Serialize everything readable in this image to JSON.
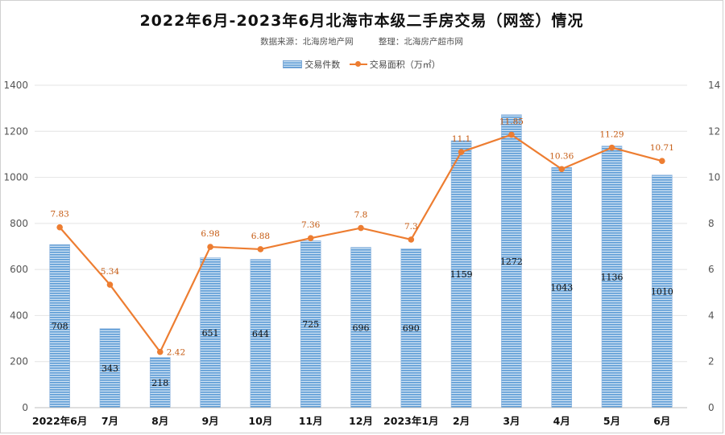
{
  "chart": {
    "title": "2022年6月-2023年6月北海市本级二手房交易（网签）情况",
    "source": "数据来源：北海房地产网",
    "editor": "整理：北海房产超市网"
  },
  "legend": {
    "bar_label": "交易件数",
    "line_label": "交易面积（万㎡）"
  },
  "colors": {
    "bar": "#5b9bd5",
    "line": "#ed7d31",
    "point_label": "#c55a11"
  },
  "chart_data": {
    "type": "bar",
    "title": "2022年6月-2023年6月北海市本级二手房交易（网签）情况",
    "categories": [
      "2022年6月",
      "7月",
      "8月",
      "9月",
      "10月",
      "11月",
      "12月",
      "2023年1月",
      "2月",
      "3月",
      "4月",
      "5月",
      "6月"
    ],
    "series": [
      {
        "name": "交易件数",
        "type": "bar",
        "axis": "left",
        "values": [
          708,
          343,
          218,
          651,
          644,
          725,
          696,
          690,
          1159,
          1272,
          1043,
          1136,
          1010
        ],
        "labels": [
          "708",
          "343",
          "218",
          "651",
          "644",
          "725",
          "696",
          "690",
          "1159",
          "1272",
          "1043",
          "1136",
          "1010"
        ]
      },
      {
        "name": "交易面积（万㎡）",
        "type": "line",
        "axis": "right",
        "values": [
          7.83,
          5.34,
          2.42,
          6.98,
          6.88,
          7.36,
          7.8,
          7.3,
          11.1,
          11.85,
          10.36,
          11.29,
          10.71
        ],
        "labels": [
          "7.83",
          "5.34",
          "2.42",
          "6.98",
          "6.88",
          "7.36",
          "7.8",
          "7.3",
          "11.1",
          "11.85",
          "10.36",
          "11.29",
          "10.71"
        ]
      }
    ],
    "y_left": {
      "lim": [
        0,
        1400
      ],
      "ticks": [
        "0",
        "200",
        "400",
        "600",
        "800",
        "1000",
        "1200",
        "1400"
      ]
    },
    "y_right": {
      "lim": [
        0,
        14
      ],
      "ticks": [
        "0",
        "2",
        "4",
        "6",
        "8",
        "10",
        "12",
        "14"
      ]
    },
    "grid": true,
    "legend_position": "top-center"
  }
}
